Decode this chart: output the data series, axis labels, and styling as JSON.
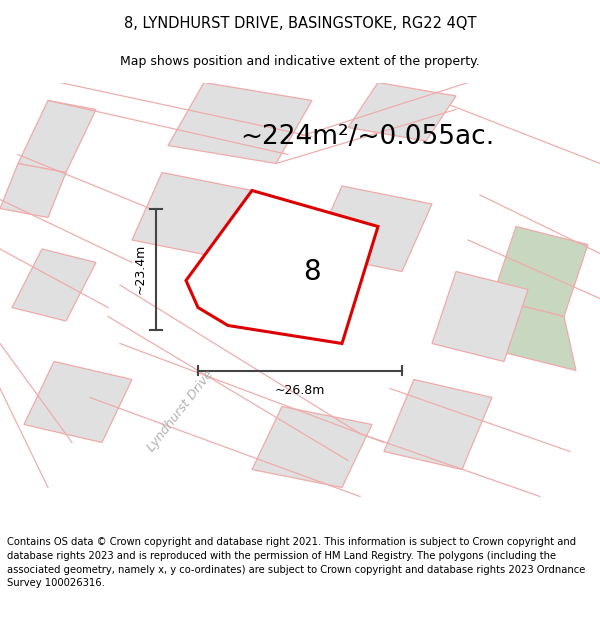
{
  "title": "8, LYNDHURST DRIVE, BASINGSTOKE, RG22 4QT",
  "subtitle": "Map shows position and indicative extent of the property.",
  "area_text": "~224m²/~0.055ac.",
  "property_number": "8",
  "dim_width": "~26.8m",
  "dim_height": "~23.4m",
  "road_label": "Lyndhurst Drive",
  "copyright_text": "Contains OS data © Crown copyright and database right 2021. This information is subject to Crown copyright and database rights 2023 and is reproduced with the permission of HM Land Registry. The polygons (including the associated geometry, namely x, y co-ordinates) are subject to Crown copyright and database rights 2023 Ordnance Survey 100026316.",
  "bg_color": "#ffffff",
  "map_bg": "#faf8f8",
  "plot_outline_color": "#dd0000",
  "plot_fill_color": "#ffffff",
  "other_outline_color": "#f0aaaa",
  "other_fill_color": "#e0e0e0",
  "green_area_color": "#c8d8c0",
  "dim_line_color": "#444444",
  "title_fontsize": 10.5,
  "subtitle_fontsize": 9,
  "area_fontsize": 19,
  "number_fontsize": 20,
  "dim_fontsize": 9,
  "copyright_fontsize": 7.2,
  "road_fontsize": 9
}
